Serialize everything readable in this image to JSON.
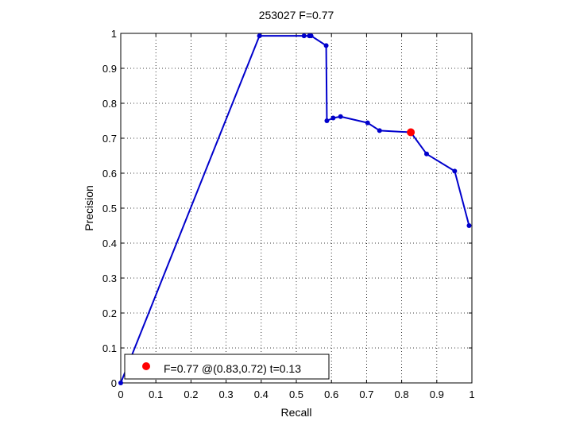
{
  "chart_data": {
    "type": "line",
    "title": "253027 F=0.77",
    "xlabel": "Recall",
    "ylabel": "Precision",
    "xlim": [
      0,
      1
    ],
    "ylim": [
      0,
      1
    ],
    "xticks": [
      "0",
      "0.1",
      "0.2",
      "0.3",
      "0.4",
      "0.5",
      "0.6",
      "0.7",
      "0.8",
      "0.9",
      "1"
    ],
    "yticks": [
      "0",
      "0.1",
      "0.2",
      "0.3",
      "0.4",
      "0.5",
      "0.6",
      "0.7",
      "0.8",
      "0.9",
      "1"
    ],
    "grid": true,
    "series": [
      {
        "color": "#0000cc",
        "points": [
          {
            "x": 0.0,
            "y": 0.0
          },
          {
            "x": 0.395,
            "y": 0.993
          },
          {
            "x": 0.522,
            "y": 0.993
          },
          {
            "x": 0.537,
            "y": 0.993
          },
          {
            "x": 0.542,
            "y": 0.993
          },
          {
            "x": 0.585,
            "y": 0.965
          },
          {
            "x": 0.587,
            "y": 0.75
          },
          {
            "x": 0.605,
            "y": 0.758
          },
          {
            "x": 0.626,
            "y": 0.762
          },
          {
            "x": 0.703,
            "y": 0.744
          },
          {
            "x": 0.737,
            "y": 0.722
          },
          {
            "x": 0.826,
            "y": 0.717
          },
          {
            "x": 0.871,
            "y": 0.655
          },
          {
            "x": 0.951,
            "y": 0.606
          },
          {
            "x": 0.992,
            "y": 0.45
          }
        ]
      }
    ],
    "highlight": {
      "x": 0.826,
      "y": 0.717,
      "color": "#ff0000"
    },
    "legend": {
      "position": "bottom-left",
      "label": "F=0.77 @(0.83,0.72) t=0.13"
    }
  }
}
